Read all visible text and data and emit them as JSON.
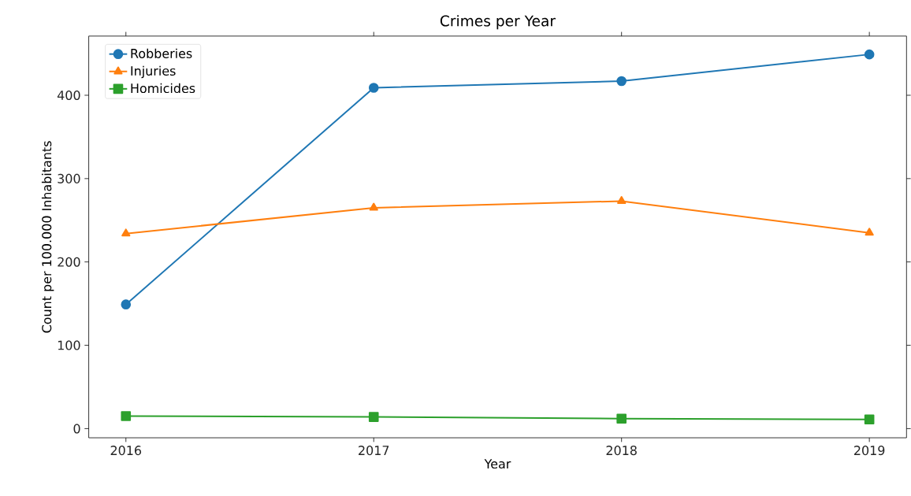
{
  "chart_data": {
    "type": "line",
    "title": "Crimes per Year",
    "xlabel": "Year",
    "ylabel": "Count per 100.000 Inhabitants",
    "x": [
      2016,
      2017,
      2018,
      2019
    ],
    "series": [
      {
        "name": "Robberies",
        "color": "#1f77b4",
        "marker": "circle",
        "values": [
          149,
          409,
          417,
          449
        ]
      },
      {
        "name": "Injuries",
        "color": "#ff7f0e",
        "marker": "triangle",
        "values": [
          234,
          265,
          273,
          235
        ]
      },
      {
        "name": "Homicides",
        "color": "#2ca02c",
        "marker": "square",
        "values": [
          15,
          14,
          12,
          11
        ]
      }
    ],
    "xlim": [
      2015.85,
      2019.15
    ],
    "ylim": [
      -11,
      471
    ],
    "xticks": [
      2016,
      2017,
      2018,
      2019
    ],
    "yticks": [
      0,
      100,
      200,
      300,
      400
    ],
    "legend": "top left",
    "grid": false,
    "line_style": "solid"
  }
}
